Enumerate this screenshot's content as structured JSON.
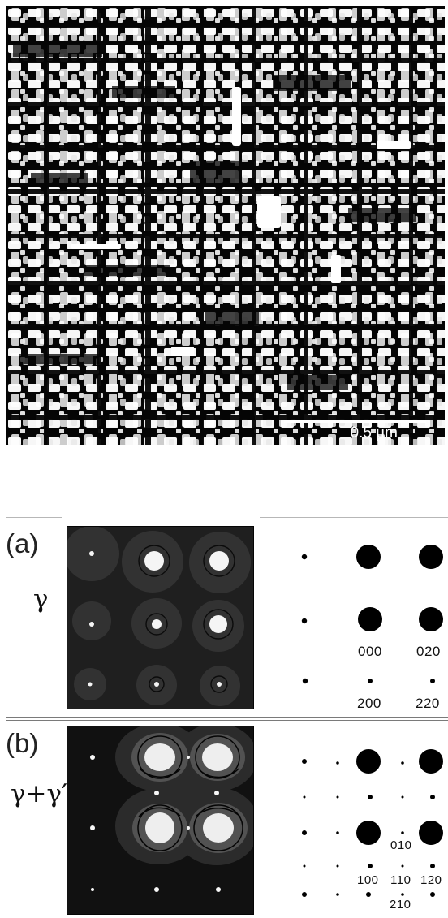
{
  "micrograph": {
    "scale_bar_label": "0.5 µm"
  },
  "panel_a": {
    "label": "(a)",
    "phase": "γ",
    "indices": [
      "000",
      "020",
      "200",
      "220"
    ]
  },
  "panel_b": {
    "label": "(b)",
    "phase": "γ+γ′",
    "indices": [
      "010",
      "100",
      "110",
      "120",
      "210"
    ]
  }
}
